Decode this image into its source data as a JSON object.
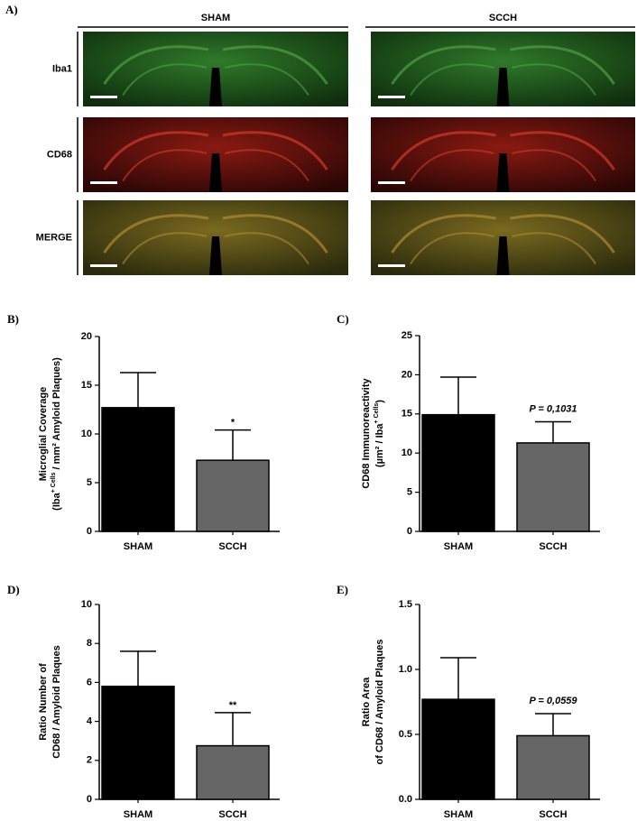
{
  "panel_a": {
    "label": "A)",
    "columns": [
      "SHAM",
      "SCCH"
    ],
    "rows": [
      "Iba1",
      "CD68",
      "MERGE"
    ]
  },
  "chart_data": [
    {
      "type": "bar",
      "panel": "B)",
      "ylabel": [
        [
          {
            "text": "Microglial Coverage"
          }
        ],
        [
          {
            "text": "(Iba"
          },
          {
            "text": "+ Cells",
            "sup": true
          },
          {
            "text": " / mm² Amyloid Plaques)"
          }
        ]
      ],
      "categories": [
        "SHAM",
        "SCCH"
      ],
      "values": [
        12.7,
        7.3
      ],
      "errors": [
        3.6,
        3.1
      ],
      "annotations": [
        null,
        "*"
      ],
      "colors": [
        "#000000",
        "#666666"
      ],
      "ylim": [
        0,
        20
      ],
      "yticks": [
        0,
        5,
        10,
        15,
        20
      ]
    },
    {
      "type": "bar",
      "panel": "C)",
      "ylabel": [
        [
          {
            "text": "CD68 Immunoreactivity"
          }
        ],
        [
          {
            "text": "(µm² / Iba"
          },
          {
            "text": "+ Cells",
            "sup": true
          },
          {
            "text": ")"
          }
        ]
      ],
      "categories": [
        "SHAM",
        "SCCH"
      ],
      "values": [
        14.9,
        11.3
      ],
      "errors": [
        4.8,
        2.7
      ],
      "annotations": [
        null,
        "P = 0,1031"
      ],
      "colors": [
        "#000000",
        "#666666"
      ],
      "ylim": [
        0,
        25
      ],
      "yticks": [
        0,
        5,
        10,
        15,
        20,
        25
      ]
    },
    {
      "type": "bar",
      "panel": "D)",
      "ylabel": [
        [
          {
            "text": "Ratio Number of"
          }
        ],
        [
          {
            "text": "CD68 / Amyloid Plaques"
          }
        ]
      ],
      "categories": [
        "SHAM",
        "SCCH"
      ],
      "values": [
        5.8,
        2.75
      ],
      "errors": [
        1.8,
        1.7
      ],
      "annotations": [
        null,
        "**"
      ],
      "colors": [
        "#000000",
        "#666666"
      ],
      "ylim": [
        0,
        10
      ],
      "yticks": [
        0,
        2,
        4,
        6,
        8,
        10
      ]
    },
    {
      "type": "bar",
      "panel": "E)",
      "ylabel": [
        [
          {
            "text": "Ratio  Area"
          }
        ],
        [
          {
            "text": "of CD68 / Amyloid Plaques"
          }
        ]
      ],
      "categories": [
        "SHAM",
        "SCCH"
      ],
      "values": [
        0.77,
        0.49
      ],
      "errors": [
        0.32,
        0.17
      ],
      "annotations": [
        null,
        "P = 0,0559"
      ],
      "colors": [
        "#000000",
        "#666666"
      ],
      "ylim": [
        0,
        1.5
      ],
      "yticks": [
        {
          "value": 0,
          "label": "0.0"
        },
        0.5,
        {
          "value": 1,
          "label": "1.0"
        },
        1.5
      ]
    }
  ]
}
